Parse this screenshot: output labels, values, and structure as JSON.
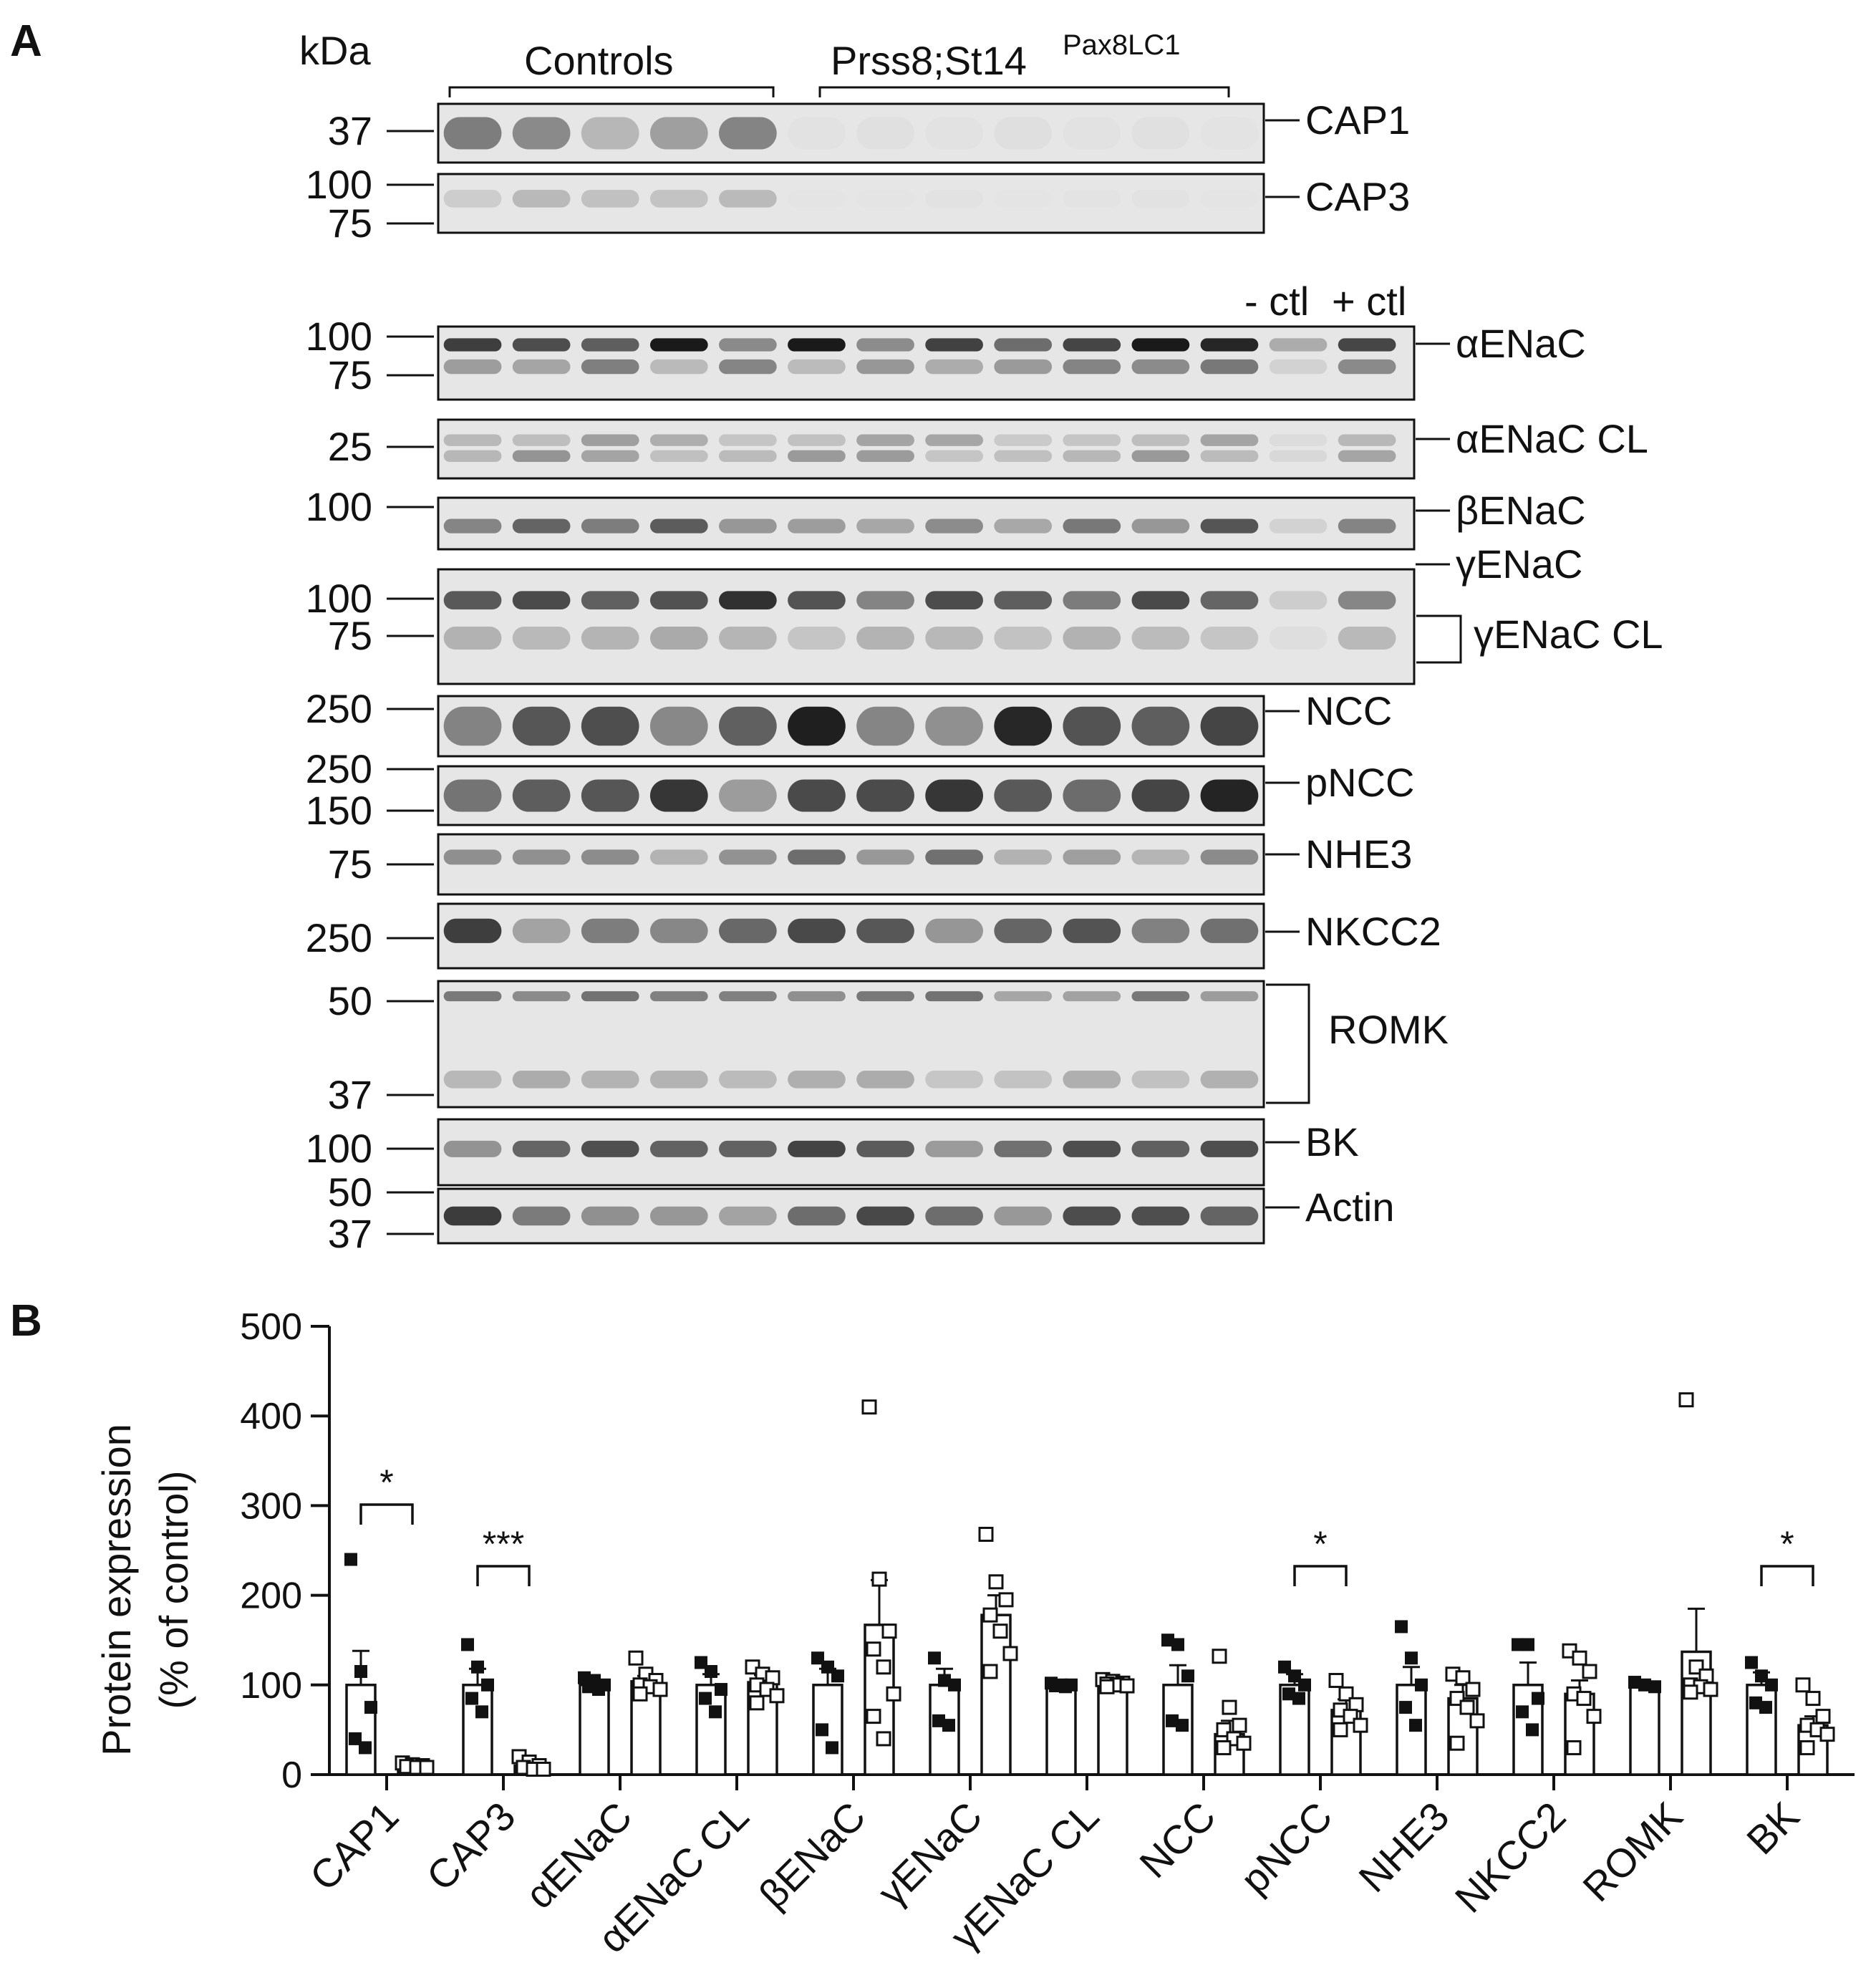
{
  "panel_a": {
    "letter": "A",
    "kda_label": "kDa",
    "group_labels": [
      {
        "text": "Controls",
        "superscript": ""
      },
      {
        "text": "Prss8;St14",
        "superscript": "Pax8LC1"
      }
    ],
    "control_lanes": [
      "- ctl",
      "+ ctl"
    ],
    "blots": [
      {
        "protein": "CAP1",
        "markers": [
          "37"
        ],
        "lanes": 12
      },
      {
        "protein": "CAP3",
        "markers": [
          "100",
          "75"
        ],
        "lanes": 12
      },
      {
        "protein": "αENaC",
        "markers": [
          "100",
          "75"
        ],
        "lanes": 14
      },
      {
        "protein": "αENaC CL",
        "markers": [
          "25"
        ],
        "lanes": 14
      },
      {
        "protein": "βENaC",
        "markers": [
          "100"
        ],
        "lanes": 14
      },
      {
        "protein": "γENaC",
        "markers": [
          "100",
          "75"
        ],
        "lanes": 14,
        "second_label": "γENaC CL"
      },
      {
        "protein": "NCC",
        "markers": [
          "250"
        ],
        "lanes": 12
      },
      {
        "protein": "pNCC",
        "markers": [
          "250",
          "150"
        ],
        "lanes": 12
      },
      {
        "protein": "NHE3",
        "markers": [
          "75"
        ],
        "lanes": 12
      },
      {
        "protein": "NKCC2",
        "markers": [
          "250"
        ],
        "lanes": 12
      },
      {
        "protein": "ROMK",
        "markers": [
          "50",
          "37"
        ],
        "lanes": 12
      },
      {
        "protein": "BK",
        "markers": [
          "100"
        ],
        "lanes": 12
      },
      {
        "protein": "Actin",
        "markers": [
          "50",
          "37"
        ],
        "lanes": 12
      }
    ]
  },
  "panel_b": {
    "letter": "B"
  },
  "colors": {
    "ink": "#111111",
    "band": "#1a1a1a",
    "blot_background": "#e6e6e6",
    "bar_fill": "#ffffff"
  },
  "chart_data": {
    "type": "bar",
    "title": "",
    "xlabel": "",
    "ylabel_line1": "Protein expression",
    "ylabel_line2": "(% of control)",
    "ylim": [
      0,
      500
    ],
    "yticks": [
      0,
      100,
      200,
      300,
      400,
      500
    ],
    "categories": [
      "CAP1",
      "CAP3",
      "αENaC",
      "αENaC CL",
      "βENaC",
      "γENaC",
      "γENaC CL",
      "NCC",
      "pNCC",
      "NHE3",
      "NKCC2",
      "ROMK",
      "BK"
    ],
    "series": [
      {
        "marker": "filled-square",
        "values": [
          100,
          100,
          100,
          100,
          100,
          100,
          100,
          100,
          100,
          100,
          100,
          100,
          100
        ],
        "errors": [
          38,
          18,
          5,
          12,
          18,
          18,
          2,
          22,
          12,
          20,
          25,
          3,
          14
        ],
        "points": [
          [
            240,
            115,
            75,
            40,
            30
          ],
          [
            145,
            120,
            100,
            85,
            70
          ],
          [
            108,
            105,
            100,
            98,
            95
          ],
          [
            125,
            115,
            95,
            85,
            70
          ],
          [
            130,
            120,
            110,
            50,
            30
          ],
          [
            130,
            105,
            100,
            60,
            55
          ],
          [
            102,
            100,
            100,
            99,
            98
          ],
          [
            150,
            145,
            110,
            60,
            55
          ],
          [
            120,
            110,
            100,
            90,
            85
          ],
          [
            165,
            130,
            100,
            75,
            55
          ],
          [
            145,
            145,
            85,
            70,
            50
          ],
          [
            103,
            100,
            98
          ],
          [
            125,
            110,
            100,
            80,
            75
          ]
        ]
      },
      {
        "marker": "open-square",
        "values": [
          10,
          10,
          104,
          103,
          167,
          178,
          102,
          45,
          72,
          85,
          90,
          137,
          55
        ],
        "errors": [
          3,
          6,
          6,
          8,
          50,
          22,
          2,
          15,
          12,
          15,
          15,
          48,
          10
        ],
        "points": [
          [
            13,
            11,
            10,
            9,
            8,
            8
          ],
          [
            20,
            14,
            10,
            8,
            6,
            6
          ],
          [
            130,
            112,
            105,
            100,
            98,
            95,
            90
          ],
          [
            120,
            112,
            108,
            100,
            95,
            88,
            80
          ],
          [
            410,
            218,
            160,
            140,
            120,
            90,
            65,
            40
          ],
          [
            268,
            215,
            195,
            178,
            160,
            135,
            115
          ],
          [
            106,
            104,
            102,
            101,
            100,
            99,
            98
          ],
          [
            132,
            75,
            55,
            50,
            40,
            35,
            30
          ],
          [
            105,
            90,
            78,
            72,
            65,
            55,
            50
          ],
          [
            112,
            108,
            95,
            85,
            75,
            60,
            35
          ],
          [
            138,
            130,
            115,
            90,
            85,
            65,
            30
          ],
          [
            418,
            120,
            110,
            100,
            98,
            95,
            92
          ],
          [
            100,
            85,
            65,
            55,
            50,
            45,
            30
          ]
        ]
      }
    ],
    "significance": [
      {
        "category": "CAP1",
        "label": "*"
      },
      {
        "category": "CAP3",
        "label": "***"
      },
      {
        "category": "pNCC",
        "label": "*"
      },
      {
        "category": "BK",
        "label": "*"
      }
    ]
  }
}
